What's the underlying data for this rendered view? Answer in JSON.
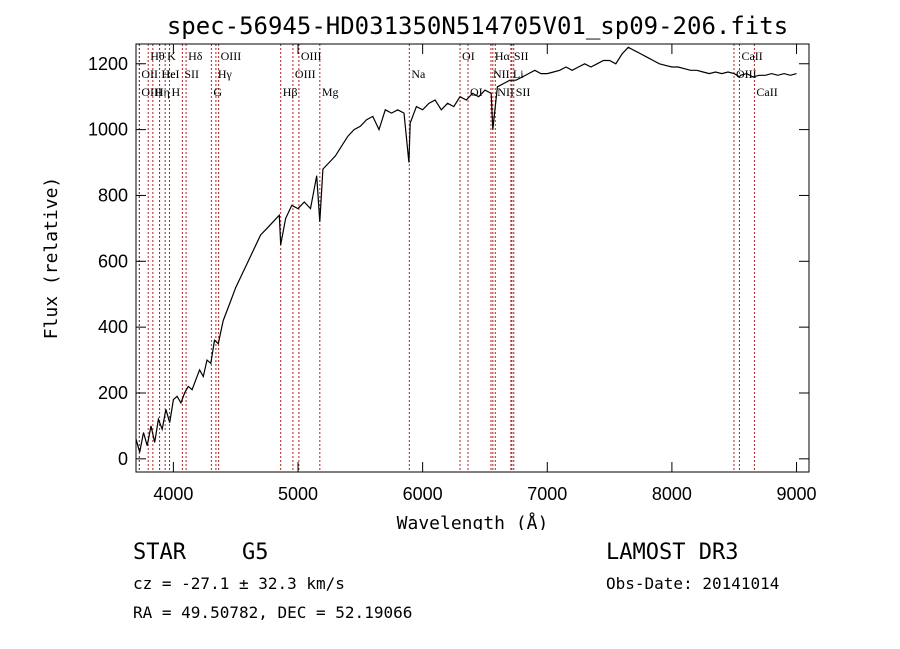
{
  "chart_data": {
    "type": "line",
    "title": "spec-56945-HD031350N514705V01_sp09-206.fits",
    "xlabel": "Wavelength (Å)",
    "ylabel": "Flux (relative)",
    "xlim": [
      3700,
      9100
    ],
    "ylim": [
      -40,
      1260
    ],
    "xticks": [
      4000,
      5000,
      6000,
      7000,
      8000,
      9000
    ],
    "yticks": [
      0,
      200,
      400,
      600,
      800,
      1000,
      1200
    ],
    "grid": false,
    "series": [
      {
        "name": "spectrum",
        "x": [
          3700,
          3730,
          3760,
          3790,
          3820,
          3850,
          3880,
          3910,
          3940,
          3970,
          4000,
          4030,
          4060,
          4090,
          4120,
          4150,
          4180,
          4210,
          4240,
          4270,
          4300,
          4330,
          4360,
          4400,
          4450,
          4500,
          4550,
          4600,
          4650,
          4700,
          4750,
          4800,
          4850,
          4861,
          4900,
          4950,
          5000,
          5050,
          5100,
          5150,
          5175,
          5200,
          5250,
          5300,
          5350,
          5400,
          5450,
          5500,
          5550,
          5600,
          5650,
          5700,
          5750,
          5800,
          5850,
          5890,
          5900,
          5950,
          6000,
          6050,
          6100,
          6150,
          6200,
          6250,
          6300,
          6350,
          6400,
          6450,
          6500,
          6550,
          6563,
          6600,
          6650,
          6700,
          6750,
          6800,
          6850,
          6900,
          6950,
          7000,
          7050,
          7100,
          7150,
          7200,
          7250,
          7300,
          7350,
          7400,
          7450,
          7500,
          7550,
          7600,
          7650,
          7700,
          7750,
          7800,
          7850,
          7900,
          7950,
          8000,
          8050,
          8100,
          8150,
          8200,
          8250,
          8300,
          8350,
          8400,
          8450,
          8500,
          8542,
          8550,
          8600,
          8650,
          8700,
          8750,
          8800,
          8850,
          8900,
          8950,
          9000
        ],
        "values": [
          60,
          20,
          80,
          40,
          100,
          50,
          120,
          90,
          150,
          110,
          180,
          190,
          170,
          200,
          220,
          210,
          240,
          270,
          250,
          300,
          290,
          360,
          350,
          420,
          470,
          520,
          560,
          600,
          640,
          680,
          700,
          720,
          740,
          650,
          730,
          770,
          760,
          780,
          760,
          860,
          720,
          880,
          900,
          920,
          950,
          980,
          1000,
          1010,
          1030,
          1040,
          1000,
          1060,
          1050,
          1060,
          1050,
          900,
          1020,
          1070,
          1060,
          1080,
          1090,
          1060,
          1080,
          1070,
          1100,
          1090,
          1110,
          1100,
          1120,
          1110,
          1000,
          1130,
          1140,
          1150,
          1150,
          1160,
          1170,
          1180,
          1170,
          1170,
          1175,
          1180,
          1190,
          1180,
          1190,
          1200,
          1190,
          1200,
          1210,
          1210,
          1200,
          1230,
          1250,
          1240,
          1230,
          1220,
          1210,
          1200,
          1195,
          1190,
          1190,
          1185,
          1180,
          1180,
          1175,
          1170,
          1175,
          1170,
          1175,
          1170,
          1160,
          1165,
          1170,
          1160,
          1165,
          1165,
          1170,
          1165,
          1170,
          1165,
          1170
        ]
      }
    ],
    "line_markers": [
      {
        "label": "Hθ",
        "wl": 3798,
        "row": 0
      },
      {
        "label": "OII",
        "wl": 3727,
        "row": 1
      },
      {
        "label": "OIII",
        "wl": 3727,
        "row": 2
      },
      {
        "label": "Hε",
        "wl": 3889,
        "row": 1
      },
      {
        "label": "Hη",
        "wl": 3835,
        "row": 2
      },
      {
        "label": "K",
        "wl": 3934,
        "row": 0
      },
      {
        "label": "HeI",
        "wl": 3889,
        "row": 1
      },
      {
        "label": "H",
        "wl": 3969,
        "row": 2
      },
      {
        "label": "Hδ",
        "wl": 4102,
        "row": 0
      },
      {
        "label": "SII",
        "wl": 4072,
        "row": 1
      },
      {
        "label": "OIII",
        "wl": 4363,
        "row": 0
      },
      {
        "label": "Hγ",
        "wl": 4341,
        "row": 1
      },
      {
        "label": "G",
        "wl": 4305,
        "row": 2
      },
      {
        "label": "Hβ",
        "wl": 4861,
        "row": 2
      },
      {
        "label": "OIII",
        "wl": 5007,
        "row": 0
      },
      {
        "label": "OIII",
        "wl": 4959,
        "row": 1
      },
      {
        "label": "Mg",
        "wl": 5175,
        "row": 2
      },
      {
        "label": "Na",
        "wl": 5893,
        "row": 1
      },
      {
        "label": "OI",
        "wl": 6300,
        "row": 0
      },
      {
        "label": "OI",
        "wl": 6364,
        "row": 2
      },
      {
        "label": "Hα",
        "wl": 6563,
        "row": 0
      },
      {
        "label": "SII",
        "wl": 6716,
        "row": 0
      },
      {
        "label": "NII",
        "wl": 6548,
        "row": 1
      },
      {
        "label": "Li",
        "wl": 6708,
        "row": 1
      },
      {
        "label": "NII",
        "wl": 6583,
        "row": 2
      },
      {
        "label": "SII",
        "wl": 6731,
        "row": 2
      },
      {
        "label": "CaII",
        "wl": 8542,
        "row": 0
      },
      {
        "label": "OIII",
        "wl": 8498,
        "row": 1
      },
      {
        "label": "CaII",
        "wl": 8662,
        "row": 2
      }
    ],
    "marker_color": "#b22222",
    "line_color": "#000000"
  },
  "info": {
    "class": "STAR",
    "subclass": "G5",
    "survey": "LAMOST DR3",
    "cz": "cz = -27.1 ± 32.3 km/s",
    "obs_date": "Obs-Date: 20141014",
    "coords": "RA =  49.50782, DEC =  52.19066"
  }
}
